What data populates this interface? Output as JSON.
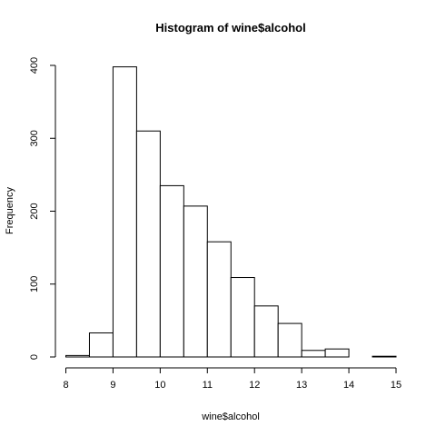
{
  "chart_data": {
    "type": "bar",
    "title": "Histogram of wine$alcohol",
    "xlabel": "wine$alcohol",
    "ylabel": "Frequency",
    "bin_edges": [
      8,
      8.5,
      9,
      9.5,
      10,
      10.5,
      11,
      11.5,
      12,
      12.5,
      13,
      13.5,
      14,
      14.5,
      15
    ],
    "values": [
      2,
      33,
      398,
      310,
      235,
      207,
      158,
      109,
      70,
      46,
      9,
      11,
      0,
      1
    ],
    "xlim": [
      8,
      15
    ],
    "ylim": [
      0,
      400
    ],
    "x_ticks": [
      "8",
      "9",
      "10",
      "11",
      "12",
      "13",
      "14",
      "15"
    ],
    "y_ticks": [
      "0",
      "100",
      "200",
      "300",
      "400"
    ],
    "grid": false,
    "legend": "none"
  }
}
